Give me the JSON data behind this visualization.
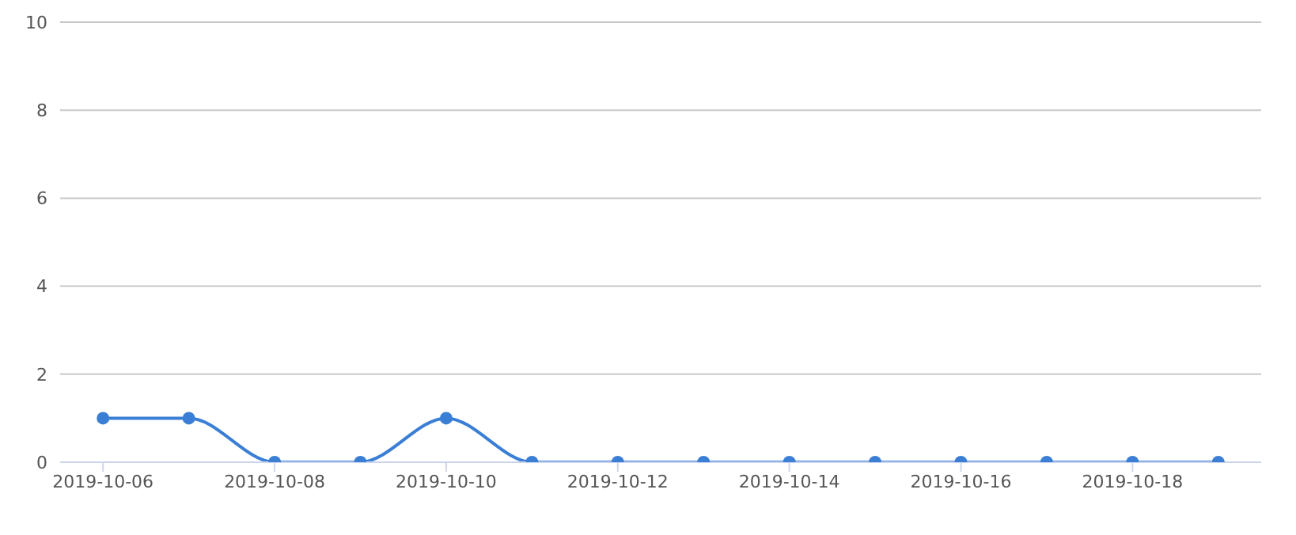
{
  "chart_data": {
    "type": "line",
    "x": [
      "2019-10-06",
      "2019-10-07",
      "2019-10-08",
      "2019-10-09",
      "2019-10-10",
      "2019-10-11",
      "2019-10-12",
      "2019-10-13",
      "2019-10-14",
      "2019-10-15",
      "2019-10-16",
      "2019-10-17",
      "2019-10-18",
      "2019-10-19"
    ],
    "series": [
      {
        "color": "#3a7fd5",
        "values": [
          1,
          1,
          0,
          0,
          1,
          0,
          0,
          0,
          0,
          0,
          0,
          0,
          0,
          0
        ]
      }
    ],
    "xlim": [
      "2019-10-05T12:00",
      "2019-10-19T12:00"
    ],
    "xticks": [
      "2019-10-06",
      "2019-10-08",
      "2019-10-10",
      "2019-10-12",
      "2019-10-14",
      "2019-10-16",
      "2019-10-18"
    ],
    "ylim": [
      0,
      10
    ],
    "yticks": [
      0,
      2,
      4,
      6,
      8,
      10
    ],
    "grid": "y",
    "marker": "circle"
  }
}
